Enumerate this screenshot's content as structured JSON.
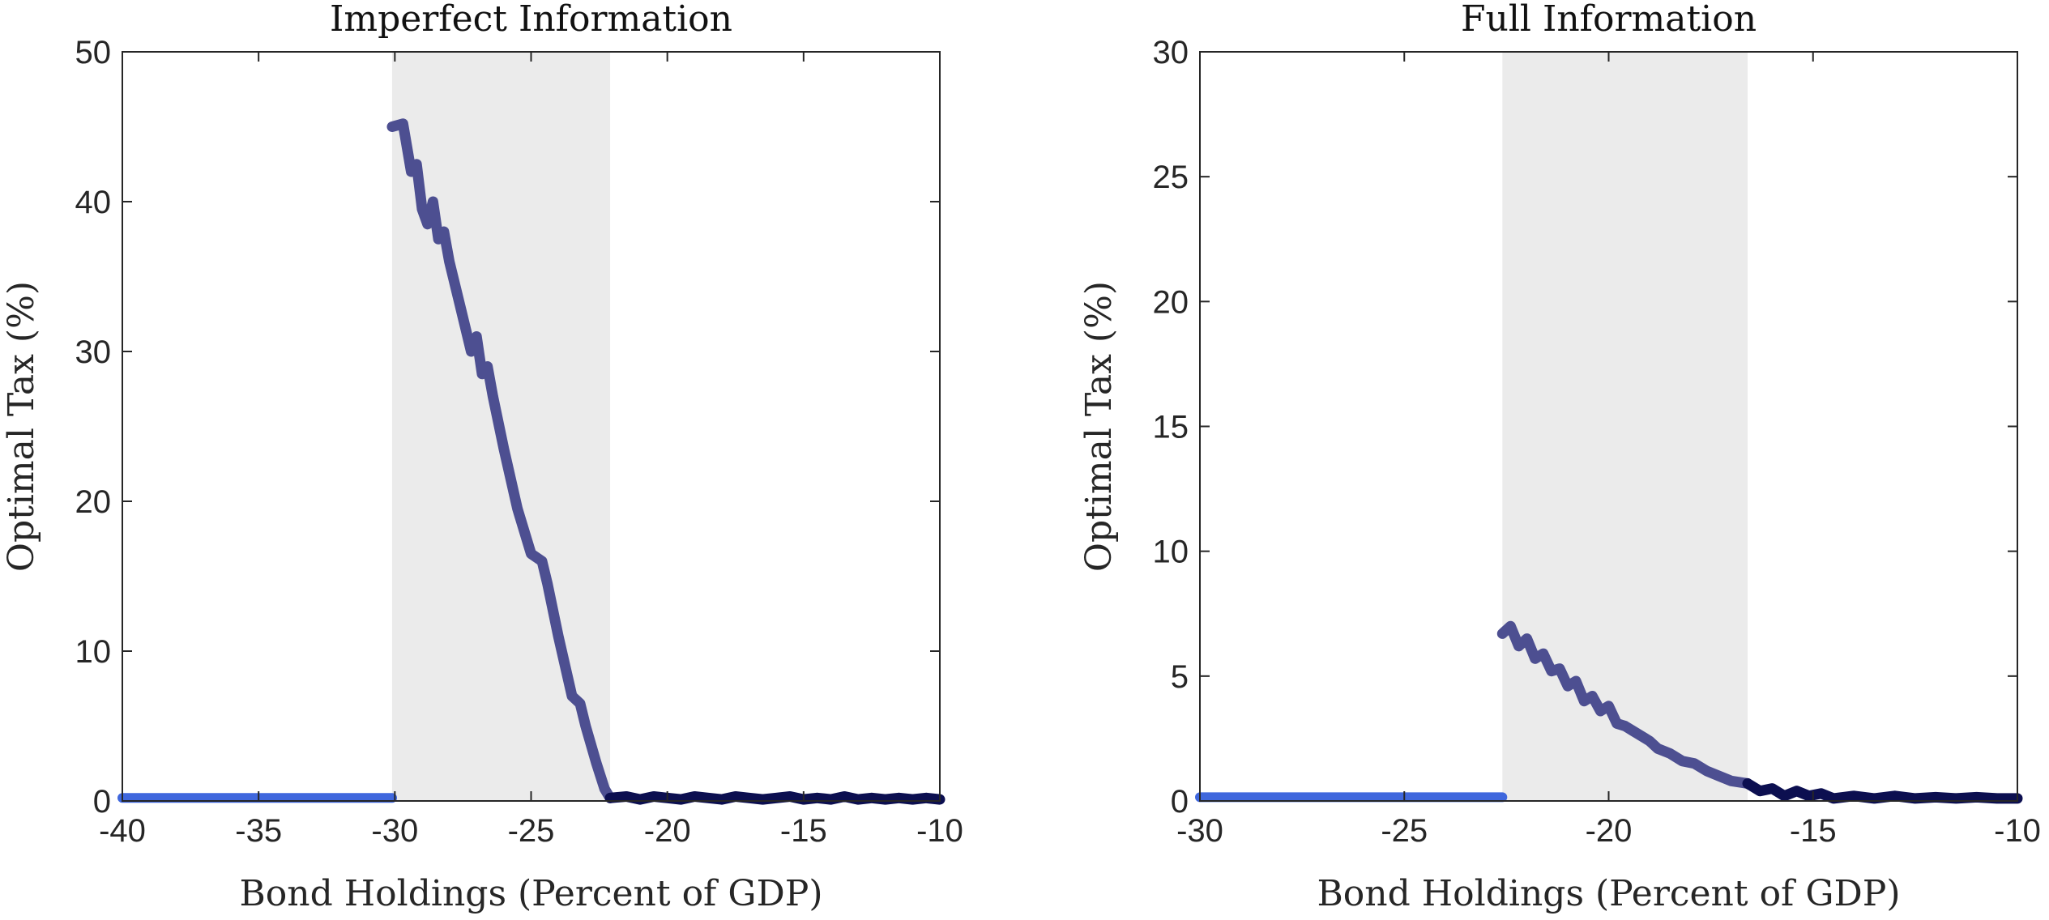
{
  "chart_data": [
    {
      "type": "line",
      "title": "Imperfect Information",
      "xlabel": "Bond Holdings (Percent of GDP)",
      "ylabel": "Optimal Tax (%)",
      "xlim": [
        -40,
        -10
      ],
      "ylim": [
        0,
        50
      ],
      "xticks": [
        "-40",
        "-35",
        "-30",
        "-25",
        "-20",
        "-15",
        "-10"
      ],
      "yticks": [
        "0",
        "10",
        "20",
        "30",
        "40",
        "50"
      ],
      "grid": false,
      "shaded_region": {
        "x": [
          -30.1,
          -22.1
        ],
        "color": "#ebebeb"
      },
      "series": [
        {
          "color": "#3f67dd",
          "x": [
            -40,
            -30.1
          ],
          "y": [
            0.2,
            0.2
          ]
        },
        {
          "color": "#4d4f91",
          "x": [
            -30.1,
            -29.7,
            -29.4,
            -29.2,
            -29.0,
            -28.8,
            -28.6,
            -28.4,
            -28.2,
            -28.0,
            -27.6,
            -27.2,
            -27.0,
            -26.8,
            -26.6,
            -26.4,
            -26.0,
            -25.5,
            -25.0,
            -24.6,
            -24.4,
            -24.0,
            -23.5,
            -23.2,
            -23.0,
            -22.6,
            -22.3,
            -22.1
          ],
          "y": [
            45.0,
            45.2,
            42.0,
            42.5,
            39.5,
            38.5,
            40.0,
            37.5,
            38.0,
            36.0,
            33.0,
            30.0,
            31.0,
            28.5,
            29.0,
            27.0,
            23.5,
            19.5,
            16.5,
            16.0,
            14.5,
            11.0,
            7.0,
            6.5,
            5.0,
            2.5,
            0.8,
            0.2
          ]
        },
        {
          "color": "#0c0f50",
          "x": [
            -22.1,
            -21.5,
            -21.0,
            -20.5,
            -20.0,
            -19.5,
            -19.0,
            -18.5,
            -18.0,
            -17.5,
            -17.0,
            -16.5,
            -16.0,
            -15.5,
            -15.0,
            -14.5,
            -14.0,
            -13.5,
            -13.0,
            -12.5,
            -12.0,
            -11.5,
            -11.0,
            -10.5,
            -10.0
          ],
          "y": [
            0.2,
            0.3,
            0.1,
            0.3,
            0.2,
            0.1,
            0.3,
            0.2,
            0.1,
            0.3,
            0.2,
            0.1,
            0.2,
            0.3,
            0.1,
            0.2,
            0.1,
            0.3,
            0.1,
            0.2,
            0.1,
            0.2,
            0.1,
            0.2,
            0.1
          ]
        }
      ]
    },
    {
      "type": "line",
      "title": "Full Information",
      "xlabel": "Bond Holdings (Percent of GDP)",
      "ylabel": "Optimal Tax (%)",
      "xlim": [
        -30,
        -10
      ],
      "ylim": [
        0,
        30
      ],
      "xticks": [
        "-30",
        "-25",
        "-20",
        "-15",
        "-10"
      ],
      "yticks": [
        "0",
        "5",
        "10",
        "15",
        "20",
        "25",
        "30"
      ],
      "grid": false,
      "shaded_region": {
        "x": [
          -22.6,
          -16.6
        ],
        "color": "#ebebeb"
      },
      "series": [
        {
          "color": "#3f67dd",
          "x": [
            -30,
            -22.6
          ],
          "y": [
            0.15,
            0.15
          ]
        },
        {
          "color": "#4d4f91",
          "x": [
            -22.6,
            -22.4,
            -22.2,
            -22.0,
            -21.8,
            -21.6,
            -21.4,
            -21.2,
            -21.0,
            -20.8,
            -20.6,
            -20.4,
            -20.2,
            -20.0,
            -19.8,
            -19.6,
            -19.4,
            -19.2,
            -19.0,
            -18.8,
            -18.5,
            -18.2,
            -17.9,
            -17.6,
            -17.3,
            -17.0,
            -16.6
          ],
          "y": [
            6.7,
            7.0,
            6.2,
            6.5,
            5.7,
            5.9,
            5.2,
            5.3,
            4.6,
            4.8,
            4.0,
            4.2,
            3.6,
            3.8,
            3.1,
            3.0,
            2.8,
            2.6,
            2.4,
            2.1,
            1.9,
            1.6,
            1.5,
            1.2,
            1.0,
            0.8,
            0.7
          ]
        },
        {
          "color": "#0c0f50",
          "x": [
            -16.6,
            -16.3,
            -16.0,
            -15.7,
            -15.4,
            -15.1,
            -14.8,
            -14.5,
            -14.0,
            -13.5,
            -13.0,
            -12.5,
            -12.0,
            -11.5,
            -11.0,
            -10.5,
            -10.0
          ],
          "y": [
            0.7,
            0.4,
            0.5,
            0.2,
            0.4,
            0.2,
            0.3,
            0.1,
            0.2,
            0.1,
            0.2,
            0.1,
            0.15,
            0.1,
            0.15,
            0.1,
            0.1
          ]
        }
      ]
    }
  ]
}
